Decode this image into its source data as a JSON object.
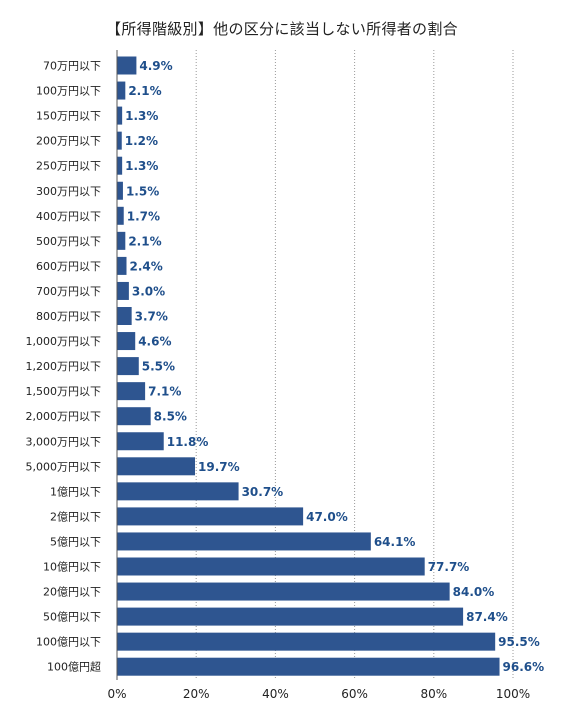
{
  "chart_data": {
    "type": "bar",
    "orientation": "horizontal",
    "title": "【所得階級別】他の区分に該当しない所得者の割合",
    "categories": [
      "70万円以下",
      "100万円以下",
      "150万円以下",
      "200万円以下",
      "250万円以下",
      "300万円以下",
      "400万円以下",
      "500万円以下",
      "600万円以下",
      "700万円以下",
      "800万円以下",
      "1,000万円以下",
      "1,200万円以下",
      "1,500万円以下",
      "2,000万円以下",
      "3,000万円以下",
      "5,000万円以下",
      "1億円以下",
      "2億円以下",
      "5億円以下",
      "10億円以下",
      "20億円以下",
      "50億円以下",
      "100億円以下",
      "100億円超"
    ],
    "values": [
      4.9,
      2.1,
      1.3,
      1.2,
      1.3,
      1.5,
      1.7,
      2.1,
      2.4,
      3.0,
      3.7,
      4.6,
      5.5,
      7.1,
      8.5,
      11.8,
      19.7,
      30.7,
      47.0,
      64.1,
      77.7,
      84.0,
      87.4,
      95.5,
      96.6
    ],
    "value_labels": [
      "4.9%",
      "2.1%",
      "1.3%",
      "1.2%",
      "1.3%",
      "1.5%",
      "1.7%",
      "2.1%",
      "2.4%",
      "3.0%",
      "3.7%",
      "4.6%",
      "5.5%",
      "7.1%",
      "8.5%",
      "11.8%",
      "19.7%",
      "30.7%",
      "47.0%",
      "64.1%",
      "77.7%",
      "84.0%",
      "87.4%",
      "95.5%",
      "96.6%"
    ],
    "xlim": [
      0,
      100
    ],
    "x_ticks": [
      0,
      20,
      40,
      60,
      80,
      100
    ],
    "x_tick_labels": [
      "0%",
      "20%",
      "40%",
      "60%",
      "80%",
      "100%"
    ],
    "grid": "vertical dotted",
    "colors": {
      "bar": "#2e5590",
      "value_label": "#1f4f8b",
      "axis_text": "#222222",
      "grid": "#9a9a9a"
    }
  }
}
